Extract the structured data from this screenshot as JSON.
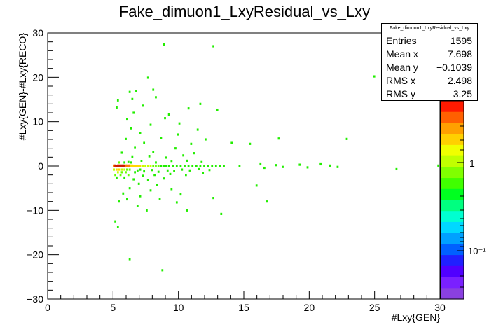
{
  "chart_data": {
    "type": "heatmap",
    "title": "Fake_dimuon1_LxyResidual_vs_Lxy",
    "xlabel": "#Lxy{GEN}",
    "ylabel": "#Lxy{GEN}-#Lxy{RECO}",
    "xlim": [
      0,
      30
    ],
    "ylim": [
      -30,
      30
    ],
    "x_ticks": [
      "0",
      "5",
      "10",
      "15",
      "20",
      "25",
      "30"
    ],
    "y_ticks": [
      "−30",
      "−20",
      "−10",
      "0",
      "10",
      "20",
      "30"
    ],
    "palette_ticks": [
      "1",
      "10⁻¹"
    ],
    "grid": false,
    "log_z": true,
    "stats": {
      "name": "Fake_dimuon1_LxyResidual_vs_Lxy",
      "rows": [
        {
          "label": "Entries",
          "value": "1595"
        },
        {
          "label": "Mean x",
          "value": "7.698"
        },
        {
          "label": "Mean y",
          "value": "−0.1039"
        },
        {
          "label": "RMS x",
          "value": "2.498"
        },
        {
          "label": "RMS y",
          "value": "3.25"
        }
      ]
    },
    "cells": [
      [
        5.0,
        0.1,
        6
      ],
      [
        5.1,
        0.1,
        8
      ],
      [
        5.2,
        0.0,
        9
      ],
      [
        5.3,
        0.1,
        9
      ],
      [
        5.4,
        0.1,
        9
      ],
      [
        5.5,
        0.1,
        9
      ],
      [
        5.6,
        0.1,
        8
      ],
      [
        5.7,
        0.1,
        8
      ],
      [
        5.8,
        0.1,
        8
      ],
      [
        5.9,
        0.1,
        7
      ],
      [
        6.0,
        0.1,
        7
      ],
      [
        6.1,
        0.1,
        6
      ],
      [
        6.2,
        0.1,
        6
      ],
      [
        6.3,
        0.1,
        5
      ],
      [
        6.4,
        0.1,
        5
      ],
      [
        6.5,
        0.0,
        5
      ],
      [
        6.6,
        0.0,
        5
      ],
      [
        6.7,
        0.0,
        4
      ],
      [
        6.8,
        0.0,
        4
      ],
      [
        6.9,
        0.0,
        4
      ],
      [
        7.0,
        0.0,
        4
      ],
      [
        7.2,
        0.0,
        3
      ],
      [
        7.4,
        0.0,
        3
      ],
      [
        7.6,
        0.0,
        3
      ],
      [
        7.8,
        0.0,
        3
      ],
      [
        8.0,
        0.0,
        2
      ],
      [
        8.2,
        0.0,
        2
      ],
      [
        8.4,
        0.0,
        2
      ],
      [
        5.0,
        -0.8,
        3
      ],
      [
        5.2,
        -0.8,
        4
      ],
      [
        5.4,
        -0.8,
        4
      ],
      [
        5.6,
        -0.8,
        3
      ],
      [
        5.8,
        -0.8,
        3
      ],
      [
        6.0,
        -0.8,
        2
      ],
      [
        6.2,
        -0.8,
        2
      ],
      [
        5.3,
        -1.4,
        3
      ],
      [
        5.6,
        -1.4,
        2
      ],
      [
        5.9,
        -1.4,
        2
      ],
      [
        5.1,
        -2.0,
        2
      ],
      [
        5.5,
        -2.0,
        2
      ],
      [
        6.1,
        -2.0,
        2
      ],
      [
        5.2,
        -2.6,
        1
      ],
      [
        5.8,
        -2.6,
        1
      ],
      [
        5.4,
        0.8,
        2
      ],
      [
        5.8,
        0.8,
        1
      ],
      [
        6.3,
        0.8,
        1
      ],
      [
        6.6,
        -1.4,
        1
      ],
      [
        7.0,
        -0.8,
        1
      ],
      [
        8.6,
        0.0,
        1
      ],
      [
        8.8,
        0.0,
        1
      ],
      [
        9.0,
        0.0,
        1
      ],
      [
        9.2,
        0.0,
        1
      ],
      [
        9.5,
        0.0,
        1
      ],
      [
        9.8,
        0.0,
        1
      ],
      [
        10.1,
        0.0,
        1
      ],
      [
        10.4,
        0.0,
        1
      ],
      [
        10.7,
        0.0,
        1
      ],
      [
        11.0,
        0.0,
        1
      ],
      [
        11.3,
        0.0,
        1
      ],
      [
        11.6,
        0.0,
        1
      ],
      [
        11.9,
        0.0,
        1
      ],
      [
        12.2,
        0.0,
        1
      ],
      [
        12.5,
        0.0,
        1
      ],
      [
        12.8,
        0.0,
        1
      ],
      [
        13.1,
        0.0,
        1
      ],
      [
        13.4,
        0.0,
        1
      ],
      [
        6.8,
        -1.0,
        1
      ],
      [
        7.3,
        -1.2,
        1
      ],
      [
        7.9,
        -0.9,
        1
      ],
      [
        8.4,
        -1.3,
        1
      ],
      [
        9.1,
        -1.0,
        1
      ],
      [
        9.6,
        -1.1,
        1
      ],
      [
        10.2,
        -0.8,
        1
      ],
      [
        10.8,
        -1.0,
        1
      ],
      [
        11.5,
        -0.7,
        1
      ],
      [
        12.3,
        -0.9,
        1
      ],
      [
        7.2,
        -2.2,
        1
      ],
      [
        8.1,
        -2.0,
        1
      ],
      [
        9.3,
        -1.8,
        1
      ],
      [
        10.5,
        -2.0,
        1
      ],
      [
        11.8,
        -1.6,
        1
      ],
      [
        6.5,
        -3.0,
        1
      ],
      [
        7.6,
        -3.2,
        1
      ],
      [
        8.8,
        -2.8,
        1
      ],
      [
        6.9,
        -4.0,
        1
      ],
      [
        8.3,
        -4.2,
        1
      ],
      [
        6.2,
        -5.0,
        1
      ],
      [
        7.8,
        -5.5,
        1
      ],
      [
        9.4,
        -5.2,
        1
      ],
      [
        5.7,
        -6.2,
        1
      ],
      [
        7.0,
        -6.8,
        1
      ],
      [
        10.1,
        -6.4,
        1
      ],
      [
        6.0,
        -7.5,
        1
      ],
      [
        8.5,
        -7.4,
        1
      ],
      [
        12.6,
        -7.2,
        1
      ],
      [
        5.4,
        -8.0,
        1
      ],
      [
        9.8,
        -8.2,
        1
      ],
      [
        6.8,
        -9.0,
        1
      ],
      [
        7.5,
        -10.0,
        1
      ],
      [
        10.6,
        -10.0,
        1
      ],
      [
        13.2,
        -10.8,
        1
      ],
      [
        5.1,
        -12.5,
        1
      ],
      [
        5.3,
        -13.8,
        1
      ],
      [
        6.2,
        -21.0,
        1
      ],
      [
        8.7,
        -23.5,
        1
      ],
      [
        6.1,
        0.9,
        1
      ],
      [
        7.1,
        1.1,
        1
      ],
      [
        8.2,
        0.8,
        1
      ],
      [
        9.4,
        1.0,
        1
      ],
      [
        10.6,
        1.2,
        1
      ],
      [
        11.7,
        0.9,
        1
      ],
      [
        6.4,
        2.0,
        1
      ],
      [
        7.7,
        2.2,
        1
      ],
      [
        9.0,
        1.9,
        1
      ],
      [
        10.3,
        2.4,
        1
      ],
      [
        5.6,
        3.0,
        1
      ],
      [
        8.0,
        3.2,
        1
      ],
      [
        11.1,
        2.9,
        1
      ],
      [
        6.6,
        4.1,
        1
      ],
      [
        9.7,
        4.0,
        1
      ],
      [
        7.3,
        5.2,
        1
      ],
      [
        10.9,
        5.0,
        1
      ],
      [
        5.9,
        6.1,
        1
      ],
      [
        8.6,
        6.3,
        1
      ],
      [
        12.0,
        6.0,
        1
      ],
      [
        7.0,
        7.4,
        1
      ],
      [
        9.9,
        7.1,
        1
      ],
      [
        6.3,
        8.5,
        1
      ],
      [
        11.4,
        8.2,
        1
      ],
      [
        7.8,
        9.3,
        1
      ],
      [
        10.0,
        9.6,
        1
      ],
      [
        6.0,
        10.5,
        1
      ],
      [
        8.9,
        10.8,
        1
      ],
      [
        6.5,
        12.0,
        1
      ],
      [
        9.2,
        11.6,
        1
      ],
      [
        5.2,
        13.2,
        1
      ],
      [
        7.2,
        13.6,
        1
      ],
      [
        5.3,
        14.8,
        1
      ],
      [
        6.4,
        15.1,
        1
      ],
      [
        8.2,
        15.5,
        1
      ],
      [
        11.6,
        14.0,
        1
      ],
      [
        6.2,
        16.7,
        1
      ],
      [
        6.7,
        16.9,
        1
      ],
      [
        8.0,
        17.2,
        1
      ],
      [
        7.6,
        19.9,
        1
      ],
      [
        8.8,
        27.4,
        1
      ],
      [
        12.6,
        27.0,
        1
      ],
      [
        10.7,
        13.0,
        1
      ],
      [
        12.9,
        12.7,
        1
      ],
      [
        14.0,
        5.2,
        1
      ],
      [
        15.4,
        5.0,
        1
      ],
      [
        17.6,
        6.2,
        1
      ],
      [
        22.8,
        6.1,
        1
      ],
      [
        24.9,
        20.2,
        1
      ],
      [
        14.6,
        0.0,
        1
      ],
      [
        16.2,
        0.4,
        1
      ],
      [
        16.5,
        -0.4,
        1
      ],
      [
        17.4,
        0.2,
        1
      ],
      [
        17.9,
        -0.2,
        1
      ],
      [
        19.2,
        0.3,
        1
      ],
      [
        19.8,
        -0.3,
        1
      ],
      [
        20.8,
        0.4,
        1
      ],
      [
        21.5,
        0.1,
        1
      ],
      [
        22.1,
        -0.2,
        1
      ],
      [
        26.6,
        -0.7,
        1
      ],
      [
        29.8,
        0.1,
        1
      ],
      [
        16.7,
        -8.0,
        1
      ],
      [
        15.9,
        -4.4,
        1
      ]
    ]
  }
}
